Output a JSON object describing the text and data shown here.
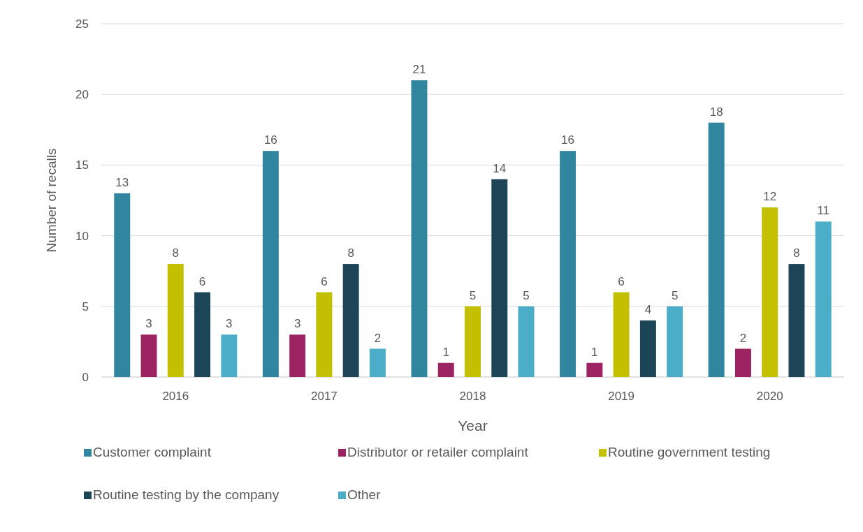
{
  "chart_data": {
    "type": "bar",
    "xlabel": "Year",
    "ylabel": "Number of recalls",
    "categories": [
      "2016",
      "2017",
      "2018",
      "2019",
      "2020"
    ],
    "series": [
      {
        "name": "Customer complaint",
        "color": "#31869f",
        "values": [
          13,
          16,
          21,
          16,
          18
        ]
      },
      {
        "name": "Distributor or retailer complaint",
        "color": "#9c2462",
        "values": [
          3,
          3,
          1,
          1,
          2
        ]
      },
      {
        "name": "Routine government testing",
        "color": "#c2c000",
        "values": [
          8,
          6,
          5,
          6,
          12
        ]
      },
      {
        "name": "Routine testing by the company",
        "color": "#1c4558",
        "values": [
          6,
          8,
          14,
          4,
          8
        ]
      },
      {
        "name": "Other",
        "color": "#4badc7",
        "values": [
          3,
          2,
          5,
          5,
          11
        ]
      }
    ],
    "ylim": [
      0,
      25
    ],
    "yticks": [
      0,
      5,
      10,
      15,
      20,
      25
    ],
    "grid": "y",
    "legend": "bottom",
    "data_labels": true
  }
}
